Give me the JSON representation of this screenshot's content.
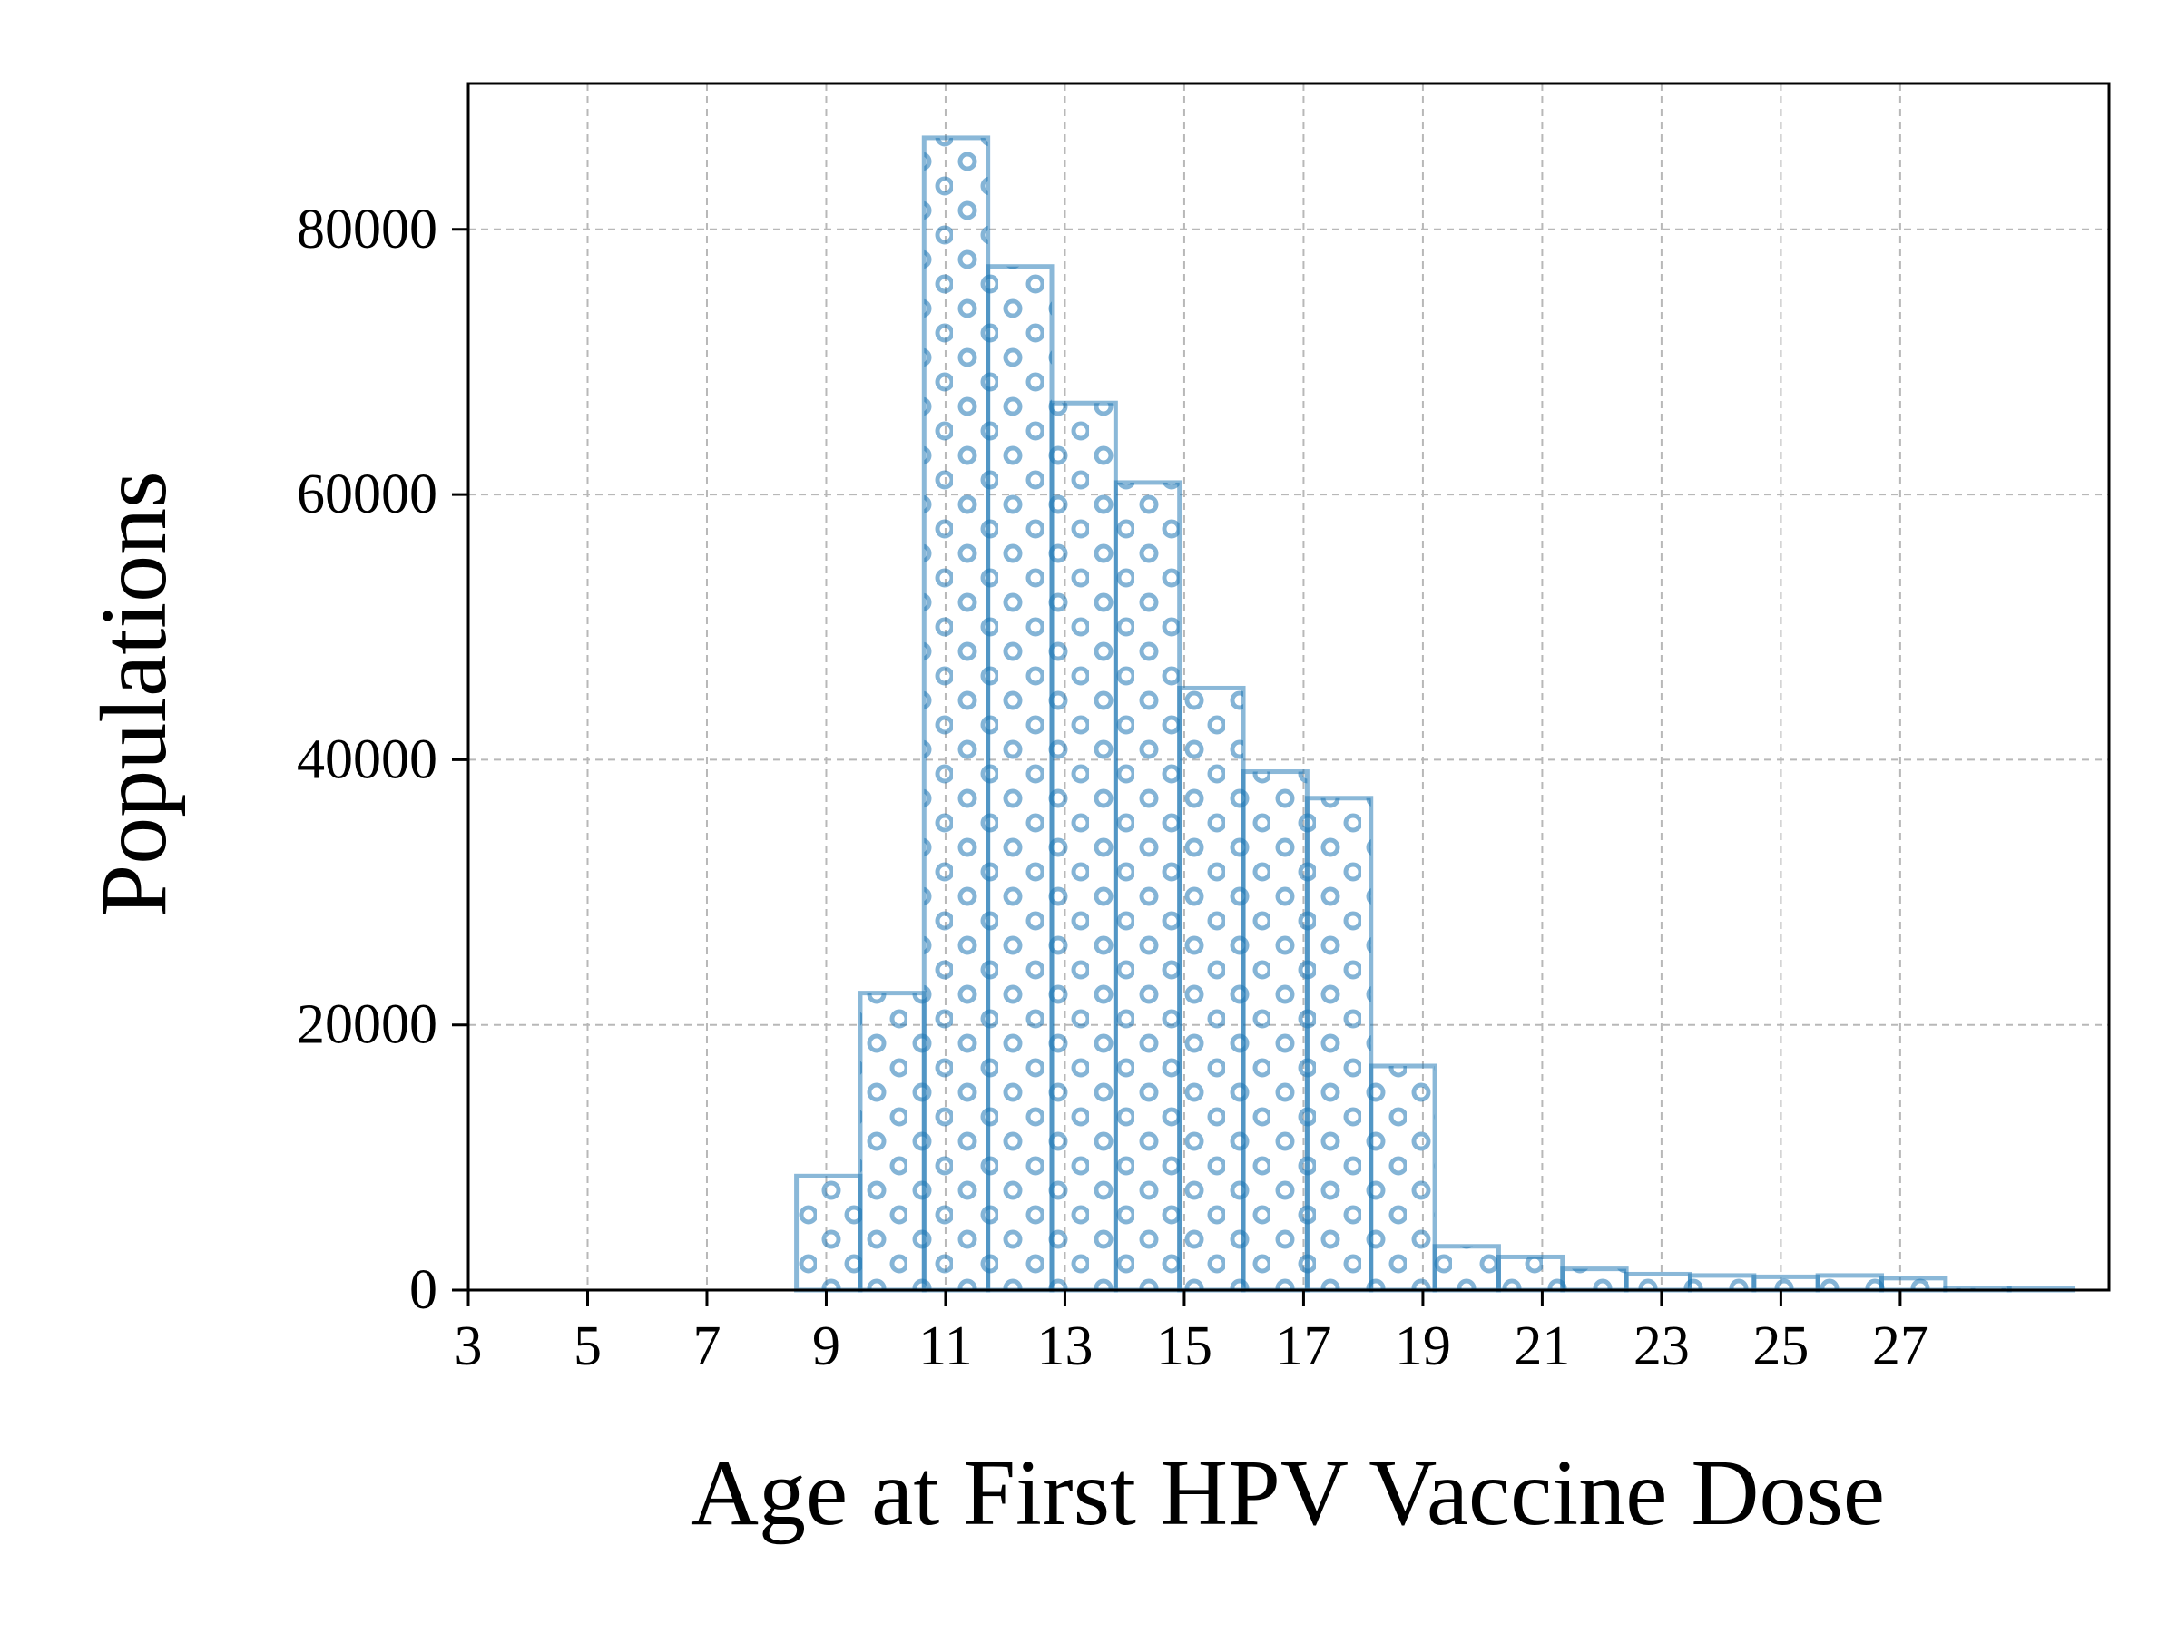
{
  "chart_data": {
    "type": "bar",
    "title": "",
    "xlabel": "Age at First HPV Vaccine Dose",
    "ylabel": "Populations",
    "x_ticks": [
      3,
      5,
      7,
      9,
      11,
      13,
      15,
      17,
      19,
      21,
      23,
      25,
      27
    ],
    "y_ticks": [
      0,
      20000,
      40000,
      60000,
      80000
    ],
    "xlim": [
      3,
      30.5
    ],
    "ylim": [
      0,
      91000
    ],
    "grid": true,
    "legend": "none",
    "bar_width": 1.07,
    "bar_color": "#1f77b4",
    "bar_pattern": "circles",
    "bars": [
      {
        "x": 8.5,
        "value": 8600
      },
      {
        "x": 9.57,
        "value": 22400
      },
      {
        "x": 10.64,
        "value": 86900
      },
      {
        "x": 11.71,
        "value": 77200
      },
      {
        "x": 12.78,
        "value": 66900
      },
      {
        "x": 13.85,
        "value": 60900
      },
      {
        "x": 14.92,
        "value": 45400
      },
      {
        "x": 15.99,
        "value": 39100
      },
      {
        "x": 17.06,
        "value": 37100
      },
      {
        "x": 18.13,
        "value": 16900
      },
      {
        "x": 19.2,
        "value": 3300
      },
      {
        "x": 20.27,
        "value": 2500
      },
      {
        "x": 21.34,
        "value": 1600
      },
      {
        "x": 22.41,
        "value": 1200
      },
      {
        "x": 23.48,
        "value": 1100
      },
      {
        "x": 24.55,
        "value": 1000
      },
      {
        "x": 25.62,
        "value": 1100
      },
      {
        "x": 26.69,
        "value": 900
      },
      {
        "x": 27.76,
        "value": 150
      },
      {
        "x": 28.83,
        "value": 100
      }
    ]
  }
}
